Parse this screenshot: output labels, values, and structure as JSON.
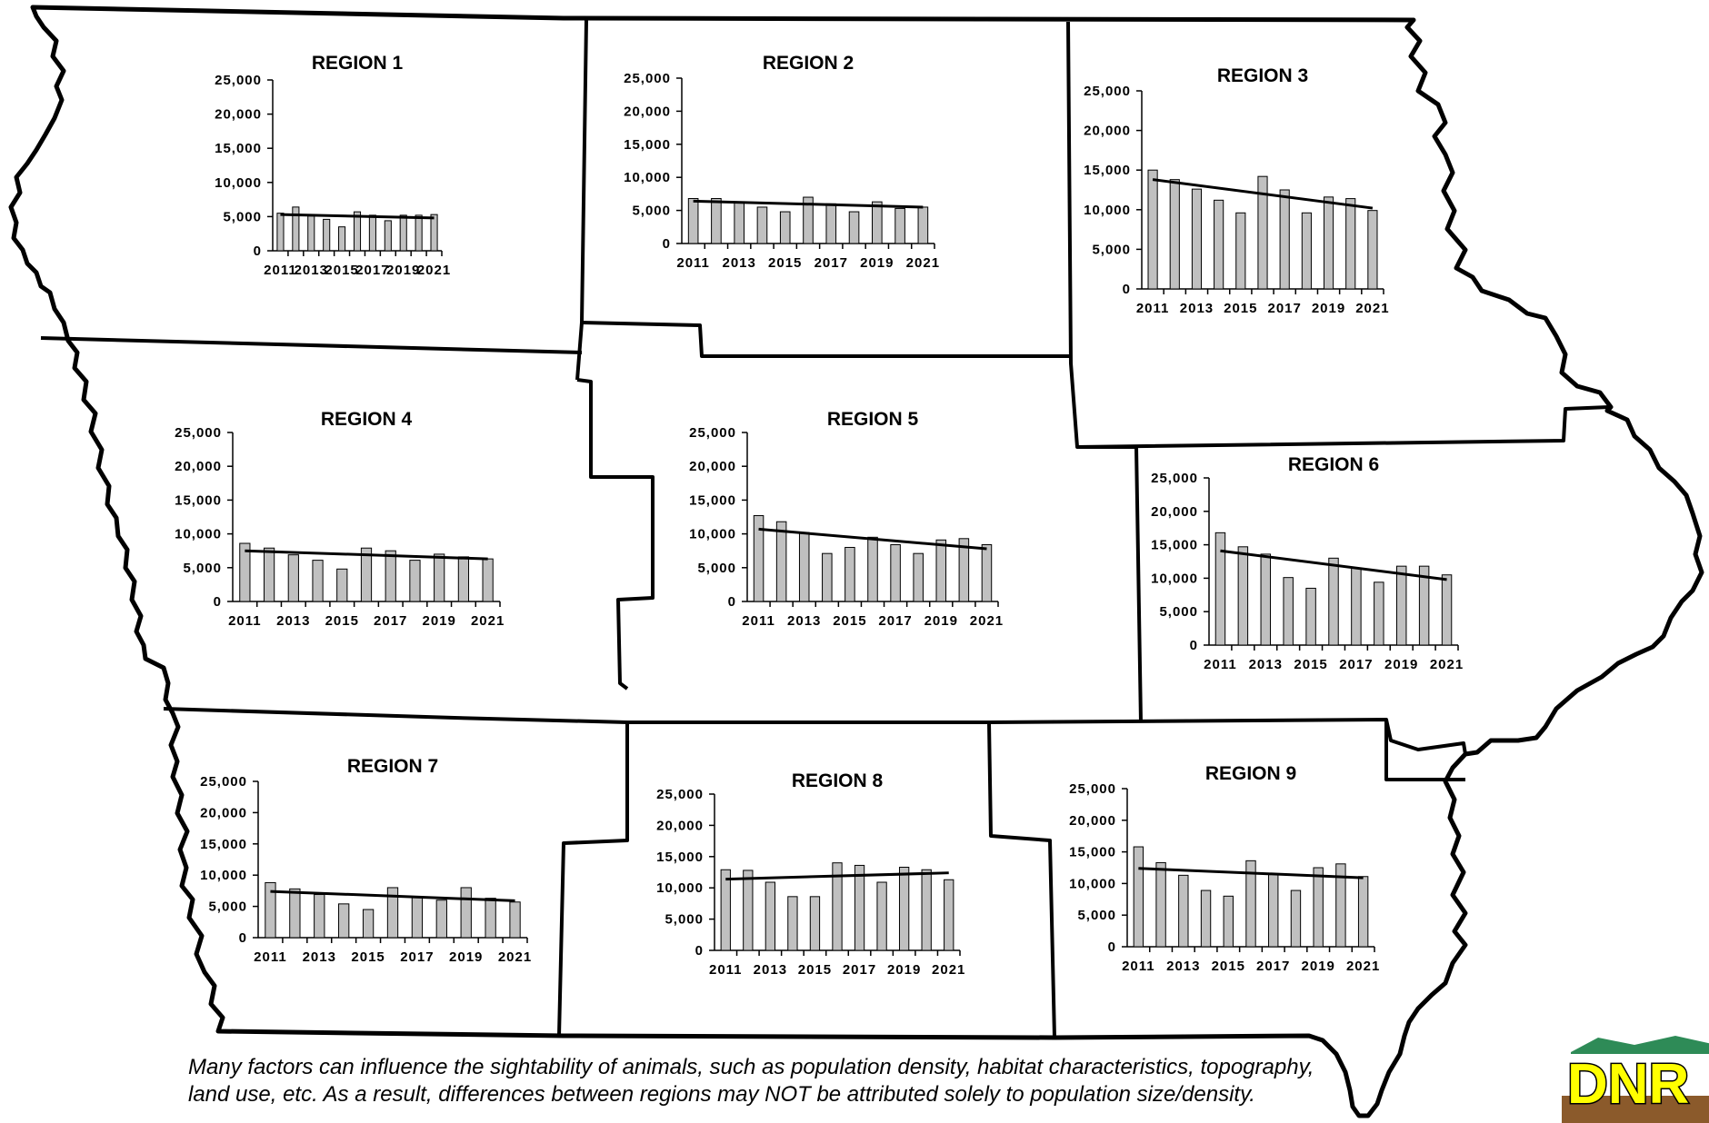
{
  "footnote": "Many factors can influence the sightability of animals, such as population density, habitat characteristics, topography, land use, etc.  As a result, differences between regions may NOT be attributed solely to population size/density.",
  "logo": {
    "text": "DNR",
    "colors": {
      "fill": "#ffff00",
      "outline": "#000000",
      "ground": "#8b5a2b",
      "top": "#2e8b57"
    }
  },
  "colors": {
    "bar": "#c0c0c0",
    "bar_outline": "#000000",
    "trend": "#000000",
    "border": "#000000"
  },
  "chart_data": [
    {
      "type": "bar",
      "title": "REGION 1",
      "x": [
        2011,
        2012,
        2013,
        2014,
        2015,
        2016,
        2017,
        2018,
        2019,
        2020,
        2021
      ],
      "tick_labels": [
        "2011",
        "2013",
        "2015",
        "2017",
        "2019",
        "2021"
      ],
      "values": [
        5500,
        6400,
        5100,
        4600,
        3500,
        5700,
        5200,
        4400,
        5200,
        5200,
        5300
      ],
      "trend": [
        5300,
        4800
      ],
      "ylim": [
        0,
        25000
      ],
      "yticks": [
        0,
        5000,
        10000,
        15000,
        20000,
        25000
      ],
      "ytick_labels": [
        "0",
        "5,000",
        "10,000",
        "15,000",
        "20,000",
        "25,000"
      ],
      "grid": false,
      "legend": "none"
    },
    {
      "type": "bar",
      "title": "REGION 2",
      "x": [
        2011,
        2012,
        2013,
        2014,
        2015,
        2016,
        2017,
        2018,
        2019,
        2020,
        2021
      ],
      "tick_labels": [
        "2011",
        "2013",
        "2015",
        "2017",
        "2019",
        "2021"
      ],
      "values": [
        6800,
        6800,
        6200,
        5500,
        4800,
        7000,
        6000,
        4800,
        6300,
        5300,
        5500
      ],
      "trend": [
        6400,
        5500
      ],
      "ylim": [
        0,
        25000
      ],
      "yticks": [
        0,
        5000,
        10000,
        15000,
        20000,
        25000
      ],
      "ytick_labels": [
        "0",
        "5,000",
        "10,000",
        "15,000",
        "20,000",
        "25,000"
      ],
      "grid": false,
      "legend": "none"
    },
    {
      "type": "bar",
      "title": "REGION 3",
      "x": [
        2011,
        2012,
        2013,
        2014,
        2015,
        2016,
        2017,
        2018,
        2019,
        2020,
        2021
      ],
      "tick_labels": [
        "2011",
        "2013",
        "2015",
        "2017",
        "2019",
        "2021"
      ],
      "values": [
        15000,
        13800,
        12600,
        11200,
        9600,
        14200,
        12500,
        9600,
        11600,
        11400,
        9900
      ],
      "trend": [
        13800,
        10200
      ],
      "ylim": [
        0,
        25000
      ],
      "yticks": [
        0,
        5000,
        10000,
        15000,
        20000,
        25000
      ],
      "ytick_labels": [
        "0",
        "5,000",
        "10,000",
        "15,000",
        "20,000",
        "25,000"
      ],
      "grid": false,
      "legend": "none"
    },
    {
      "type": "bar",
      "title": "REGION 4",
      "x": [
        2011,
        2012,
        2013,
        2014,
        2015,
        2016,
        2017,
        2018,
        2019,
        2020,
        2021
      ],
      "tick_labels": [
        "2011",
        "2013",
        "2015",
        "2017",
        "2019",
        "2021"
      ],
      "values": [
        8600,
        7900,
        6900,
        6100,
        4800,
        7900,
        7500,
        6100,
        7000,
        6600,
        6300
      ],
      "trend": [
        7500,
        6300
      ],
      "ylim": [
        0,
        25000
      ],
      "yticks": [
        0,
        5000,
        10000,
        15000,
        20000,
        25000
      ],
      "ytick_labels": [
        "0",
        "5,000",
        "10,000",
        "15,000",
        "20,000",
        "25,000"
      ],
      "grid": false,
      "legend": "none"
    },
    {
      "type": "bar",
      "title": "REGION 5",
      "x": [
        2011,
        2012,
        2013,
        2014,
        2015,
        2016,
        2017,
        2018,
        2019,
        2020,
        2021
      ],
      "tick_labels": [
        "2011",
        "2013",
        "2015",
        "2017",
        "2019",
        "2021"
      ],
      "values": [
        12700,
        11800,
        10200,
        7100,
        8000,
        9500,
        8400,
        7100,
        9100,
        9300,
        8400
      ],
      "trend": [
        10700,
        7800
      ],
      "ylim": [
        0,
        25000
      ],
      "yticks": [
        0,
        5000,
        10000,
        15000,
        20000,
        25000
      ],
      "ytick_labels": [
        "0",
        "5,000",
        "10,000",
        "15,000",
        "20,000",
        "25,000"
      ],
      "grid": false,
      "legend": "none"
    },
    {
      "type": "bar",
      "title": "REGION 6",
      "x": [
        2011,
        2012,
        2013,
        2014,
        2015,
        2016,
        2017,
        2018,
        2019,
        2020,
        2021
      ],
      "tick_labels": [
        "2011",
        "2013",
        "2015",
        "2017",
        "2019",
        "2021"
      ],
      "values": [
        16800,
        14700,
        13600,
        10100,
        8500,
        13000,
        11500,
        9400,
        11800,
        11800,
        10500
      ],
      "trend": [
        14100,
        9800
      ],
      "ylim": [
        0,
        25000
      ],
      "yticks": [
        0,
        5000,
        10000,
        15000,
        20000,
        25000
      ],
      "ytick_labels": [
        "0",
        "5,000",
        "10,000",
        "15,000",
        "20,000",
        "25,000"
      ],
      "grid": false,
      "legend": "none"
    },
    {
      "type": "bar",
      "title": "REGION 7",
      "x": [
        2011,
        2012,
        2013,
        2014,
        2015,
        2016,
        2017,
        2018,
        2019,
        2020,
        2021
      ],
      "tick_labels": [
        "2011",
        "2013",
        "2015",
        "2017",
        "2019",
        "2021"
      ],
      "values": [
        8800,
        7800,
        6900,
        5400,
        4500,
        8000,
        6600,
        6000,
        8000,
        6300,
        5700
      ],
      "trend": [
        7400,
        5900
      ],
      "ylim": [
        0,
        25000
      ],
      "yticks": [
        0,
        5000,
        10000,
        15000,
        20000,
        25000
      ],
      "ytick_labels": [
        "0",
        "5,000",
        "10,000",
        "15,000",
        "20,000",
        "25,000"
      ],
      "grid": false,
      "legend": "none"
    },
    {
      "type": "bar",
      "title": "REGION 8",
      "x": [
        2011,
        2012,
        2013,
        2014,
        2015,
        2016,
        2017,
        2018,
        2019,
        2020,
        2021
      ],
      "tick_labels": [
        "2011",
        "2013",
        "2015",
        "2017",
        "2019",
        "2021"
      ],
      "values": [
        12900,
        12800,
        10900,
        8600,
        8600,
        14000,
        13600,
        10900,
        13300,
        12900,
        11300
      ],
      "trend": [
        11400,
        12400
      ],
      "ylim": [
        0,
        25000
      ],
      "yticks": [
        0,
        5000,
        10000,
        15000,
        20000,
        25000
      ],
      "ytick_labels": [
        "0",
        "5,000",
        "10,000",
        "15,000",
        "20,000",
        "25,000"
      ],
      "grid": false,
      "legend": "none"
    },
    {
      "type": "bar",
      "title": "REGION 9",
      "x": [
        2011,
        2012,
        2013,
        2014,
        2015,
        2016,
        2017,
        2018,
        2019,
        2020,
        2021
      ],
      "tick_labels": [
        "2011",
        "2013",
        "2015",
        "2017",
        "2019",
        "2021"
      ],
      "values": [
        15800,
        13300,
        11300,
        8900,
        8000,
        13600,
        11500,
        8900,
        12500,
        13100,
        11100
      ],
      "trend": [
        12400,
        10900
      ],
      "ylim": [
        0,
        25000
      ],
      "yticks": [
        0,
        5000,
        10000,
        15000,
        20000,
        25000
      ],
      "ytick_labels": [
        "0",
        "5,000",
        "10,000",
        "15,000",
        "20,000",
        "25,000"
      ],
      "grid": false,
      "legend": "none"
    }
  ]
}
